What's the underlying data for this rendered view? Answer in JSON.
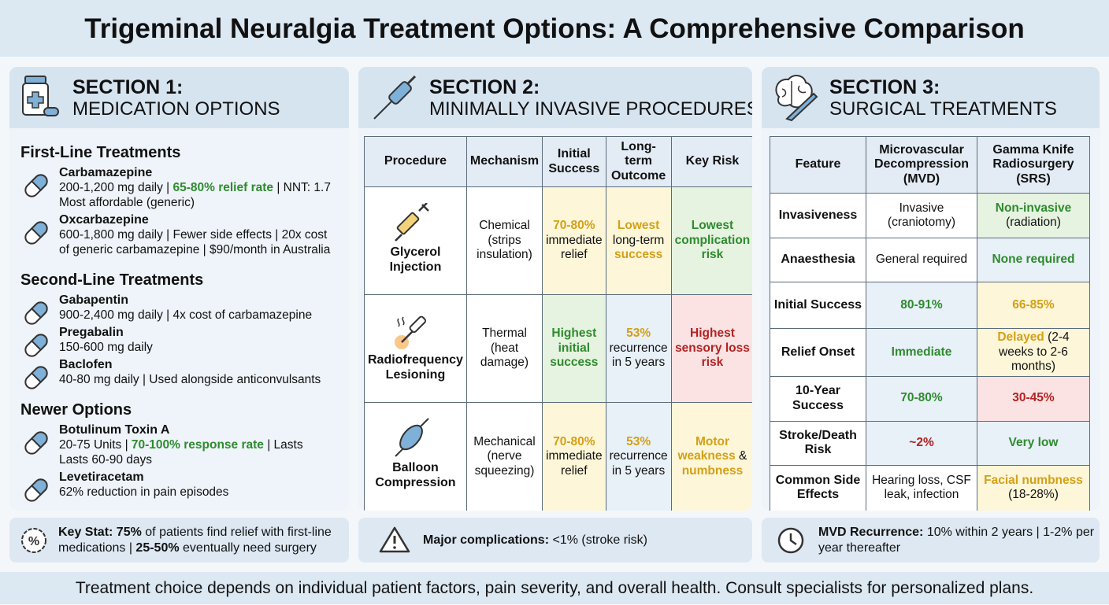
{
  "title": "Trigeminal Neuralgia Treatment Options: A Comprehensive Comparison",
  "sections": [
    {
      "label": "SECTION 1:",
      "name": "MEDICATION OPTIONS",
      "groups": [
        {
          "heading": "First-Line Treatments",
          "drugs": [
            {
              "name": "Carbamazepine",
              "desc": [
                [
                  "200-1,200 mg daily | ",
                  {
                    "text": "65-80% relief rate",
                    "tone": "green"
                  },
                  " | NNT: 1.7"
                ],
                [
                  "Most affordable (generic)"
                ]
              ]
            },
            {
              "name": "Oxcarbazepine",
              "desc": [
                [
                  "600-1,800 mg daily | Fewer side effects | 20x cost"
                ],
                [
                  "of generic carbamazepine | $90/month in Australia"
                ]
              ]
            }
          ]
        },
        {
          "heading": "Second-Line Treatments",
          "drugs": [
            {
              "name": "Gabapentin",
              "desc": [
                [
                  "900-2,400 mg daily | 4x cost of carbamazepine"
                ]
              ]
            },
            {
              "name": "Pregabalin",
              "desc": [
                [
                  "150-600 mg daily"
                ]
              ]
            },
            {
              "name": "Baclofen",
              "desc": [
                [
                  "40-80 mg daily | Used alongside anticonvulsants"
                ]
              ]
            }
          ]
        },
        {
          "heading": "Newer Options",
          "drugs": [
            {
              "name": "Botulinum Toxin A",
              "desc": [
                [
                  "20-75 Units | ",
                  {
                    "text": "70-100% response rate",
                    "tone": "green"
                  },
                  " | Lasts"
                ],
                [
                  "Lasts 60-90 days"
                ]
              ]
            },
            {
              "name": "Levetiracetam",
              "desc": [
                [
                  "62% reduction in pain episodes"
                ]
              ]
            }
          ]
        }
      ],
      "stat": [
        {
          "text": "Key Stat: 75%",
          "tone": "bold"
        },
        " of patients find relief with first-line medications | ",
        {
          "text": "25-50%",
          "tone": "bold"
        },
        " eventually need surgery"
      ]
    },
    {
      "label": "SECTION 2:",
      "name": "MINIMALLY INVASIVE PROCEDURES",
      "table": {
        "header": [
          "Procedure",
          "Mechanism",
          "Initial Success",
          "Long-term Outcome",
          "Key Risk"
        ],
        "rows": [
          [
            {
              "parts": [
                "Glycerol Injection"
              ]
            },
            {
              "parts": [
                "Chemical (strips insulation)"
              ]
            },
            {
              "parts": [
                {
                  "text": "70-80%",
                  "tone": "yellow"
                },
                " immediate relief"
              ],
              "fill": "yellow"
            },
            {
              "parts": [
                {
                  "text": "Lowest",
                  "tone": "yellow"
                },
                " long-term ",
                {
                  "text": "success",
                  "tone": "yellow"
                }
              ],
              "fill": "yellow"
            },
            {
              "parts": [
                {
                  "text": "Lowest complication risk",
                  "tone": "green"
                }
              ],
              "fill": "green"
            }
          ],
          [
            {
              "parts": [
                "Radiofrequency Lesioning"
              ]
            },
            {
              "parts": [
                "Thermal (heat damage)"
              ]
            },
            {
              "parts": [
                {
                  "text": "Highest initial success",
                  "tone": "green"
                }
              ],
              "fill": "green"
            },
            {
              "parts": [
                {
                  "text": "53%",
                  "tone": "yellow"
                },
                " recurrence in 5 years"
              ],
              "fill": "blue"
            },
            {
              "parts": [
                {
                  "text": "Highest sensory loss risk",
                  "tone": "red"
                }
              ],
              "fill": "red"
            }
          ],
          [
            {
              "parts": [
                "Balloon Compression"
              ]
            },
            {
              "parts": [
                "Mechanical (nerve squeezing)"
              ]
            },
            {
              "parts": [
                {
                  "text": "70-80%",
                  "tone": "yellow"
                },
                " immediate relief"
              ],
              "fill": "yellow"
            },
            {
              "parts": [
                {
                  "text": "53%",
                  "tone": "yellow"
                },
                " recurrence in 5 years"
              ],
              "fill": "blue"
            },
            {
              "parts": [
                {
                  "text": "Motor weakness",
                  "tone": "yellow"
                },
                " & ",
                {
                  "text": "numbness",
                  "tone": "yellow"
                }
              ],
              "fill": "yellow"
            }
          ]
        ]
      },
      "stat": [
        {
          "text": "Major complications:",
          "tone": "bold"
        },
        " <1% (stroke risk)"
      ]
    },
    {
      "label": "SECTION 3:",
      "name": "SURGICAL TREATMENTS",
      "table": {
        "header": [
          "Feature",
          "Microvascular Decompression (MVD)",
          "Gamma Knife Radiosurgery (SRS)"
        ],
        "rows": [
          [
            {
              "parts": [
                "Invasiveness"
              ]
            },
            {
              "parts": [
                "Invasive (craniotomy)"
              ]
            },
            {
              "parts": [
                {
                  "text": "Non-invasive",
                  "tone": "green"
                },
                " (radiation)"
              ],
              "fill": "green"
            }
          ],
          [
            {
              "parts": [
                "Anaesthesia"
              ]
            },
            {
              "parts": [
                "General required"
              ]
            },
            {
              "parts": [
                {
                  "text": "None required",
                  "tone": "green"
                }
              ],
              "fill": "blue"
            }
          ],
          [
            {
              "parts": [
                "Initial Success"
              ]
            },
            {
              "parts": [
                {
                  "text": "80-91%",
                  "tone": "green"
                }
              ],
              "fill": "blue"
            },
            {
              "parts": [
                {
                  "text": "66-85%",
                  "tone": "yellow"
                }
              ],
              "fill": "yellow"
            }
          ],
          [
            {
              "parts": [
                "Relief Onset"
              ]
            },
            {
              "parts": [
                {
                  "text": "Immediate",
                  "tone": "green"
                }
              ],
              "fill": "blue"
            },
            {
              "parts": [
                {
                  "text": "Delayed",
                  "tone": "yellow"
                },
                " (2-4 weeks to 2-6 months)"
              ],
              "fill": "yellow"
            }
          ],
          [
            {
              "parts": [
                "10-Year Success"
              ]
            },
            {
              "parts": [
                {
                  "text": "70-80%",
                  "tone": "green"
                }
              ],
              "fill": "blue"
            },
            {
              "parts": [
                {
                  "text": "30-45%",
                  "tone": "red"
                }
              ],
              "fill": "red"
            }
          ],
          [
            {
              "parts": [
                "Stroke/Death Risk"
              ]
            },
            {
              "parts": [
                {
                  "text": "~2%",
                  "tone": "red"
                }
              ],
              "fill": "blue"
            },
            {
              "parts": [
                {
                  "text": "Very low",
                  "tone": "green"
                }
              ],
              "fill": "blue"
            }
          ],
          [
            {
              "parts": [
                "Common Side Effects"
              ]
            },
            {
              "parts": [
                "Hearing loss, CSF leak, infection"
              ]
            },
            {
              "parts": [
                {
                  "text": "Facial numbness",
                  "tone": "yellow"
                },
                " (18-28%)"
              ],
              "fill": "yellow"
            }
          ]
        ]
      },
      "stat": [
        {
          "text": "MVD Recurrence:",
          "tone": "bold"
        },
        " 10% within 2 years | 1-2% per year thereafter"
      ]
    }
  ],
  "footer": "Treatment choice depends on individual patient factors, pain severity, and overall health. Consult specialists for personalized plans."
}
